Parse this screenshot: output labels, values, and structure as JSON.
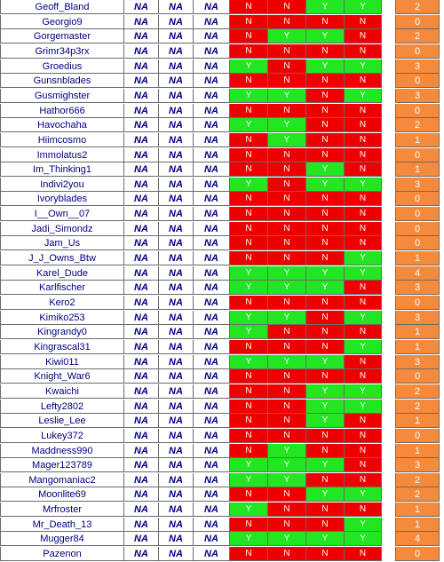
{
  "rows": [
    {
      "name": "Geoff_Bland",
      "na": [
        "NA",
        "NA",
        "NA"
      ],
      "yn": [
        "N",
        "N",
        "Y",
        "Y"
      ],
      "score": "2"
    },
    {
      "name": "Georgio9",
      "na": [
        "NA",
        "NA",
        "NA"
      ],
      "yn": [
        "N",
        "N",
        "N",
        "N"
      ],
      "score": "0"
    },
    {
      "name": "Gorgemaster",
      "na": [
        "NA",
        "NA",
        "NA"
      ],
      "yn": [
        "N",
        "Y",
        "Y",
        "N"
      ],
      "score": "2"
    },
    {
      "name": "Grimr34p3rx",
      "na": [
        "NA",
        "NA",
        "NA"
      ],
      "yn": [
        "N",
        "N",
        "N",
        "N"
      ],
      "score": "0"
    },
    {
      "name": "Groedius",
      "na": [
        "NA",
        "NA",
        "NA"
      ],
      "yn": [
        "Y",
        "N",
        "Y",
        "Y"
      ],
      "score": "3"
    },
    {
      "name": "Gunsnblades",
      "na": [
        "NA",
        "NA",
        "NA"
      ],
      "yn": [
        "N",
        "N",
        "N",
        "N"
      ],
      "score": "0"
    },
    {
      "name": "Gusmighster",
      "na": [
        "NA",
        "NA",
        "NA"
      ],
      "yn": [
        "Y",
        "Y",
        "N",
        "Y"
      ],
      "score": "3"
    },
    {
      "name": "Hathor666",
      "na": [
        "NA",
        "NA",
        "NA"
      ],
      "yn": [
        "N",
        "N",
        "N",
        "N"
      ],
      "score": "0"
    },
    {
      "name": "Havochaha",
      "na": [
        "NA",
        "NA",
        "NA"
      ],
      "yn": [
        "Y",
        "Y",
        "N",
        "N"
      ],
      "score": "2"
    },
    {
      "name": "Hiimcosmo",
      "na": [
        "NA",
        "NA",
        "NA"
      ],
      "yn": [
        "N",
        "Y",
        "N",
        "N"
      ],
      "score": "1"
    },
    {
      "name": "Immolatus2",
      "na": [
        "NA",
        "NA",
        "NA"
      ],
      "yn": [
        "N",
        "N",
        "N",
        "N"
      ],
      "score": "0"
    },
    {
      "name": "Im_Thinking1",
      "na": [
        "NA",
        "NA",
        "NA"
      ],
      "yn": [
        "N",
        "N",
        "Y",
        "N"
      ],
      "score": "1"
    },
    {
      "name": "Indivi2you",
      "na": [
        "NA",
        "NA",
        "NA"
      ],
      "yn": [
        "Y",
        "N",
        "Y",
        "Y"
      ],
      "score": "3"
    },
    {
      "name": "Ivoryblades",
      "na": [
        "NA",
        "NA",
        "NA"
      ],
      "yn": [
        "N",
        "N",
        "N",
        "N"
      ],
      "score": "0"
    },
    {
      "name": "I__Own__07",
      "na": [
        "NA",
        "NA",
        "NA"
      ],
      "yn": [
        "N",
        "N",
        "N",
        "N"
      ],
      "score": "0"
    },
    {
      "name": "Jadi_Simondz",
      "na": [
        "NA",
        "NA",
        "NA"
      ],
      "yn": [
        "N",
        "N",
        "N",
        "N"
      ],
      "score": "0"
    },
    {
      "name": "Jam_Us",
      "na": [
        "NA",
        "NA",
        "NA"
      ],
      "yn": [
        "N",
        "N",
        "N",
        "N"
      ],
      "score": "0"
    },
    {
      "name": "J_J_Owns_Btw",
      "na": [
        "NA",
        "NA",
        "NA"
      ],
      "yn": [
        "N",
        "N",
        "N",
        "Y"
      ],
      "score": "1"
    },
    {
      "name": "Karel_Dude",
      "na": [
        "NA",
        "NA",
        "NA"
      ],
      "yn": [
        "Y",
        "Y",
        "Y",
        "Y"
      ],
      "score": "4"
    },
    {
      "name": "Karlfischer",
      "na": [
        "NA",
        "NA",
        "NA"
      ],
      "yn": [
        "Y",
        "Y",
        "Y",
        "N"
      ],
      "score": "3"
    },
    {
      "name": "Kero2",
      "na": [
        "NA",
        "NA",
        "NA"
      ],
      "yn": [
        "N",
        "N",
        "N",
        "N"
      ],
      "score": "0"
    },
    {
      "name": "Kimiko253",
      "na": [
        "NA",
        "NA",
        "NA"
      ],
      "yn": [
        "Y",
        "Y",
        "N",
        "Y"
      ],
      "score": "3"
    },
    {
      "name": "Kingrandy0",
      "na": [
        "NA",
        "NA",
        "NA"
      ],
      "yn": [
        "Y",
        "N",
        "N",
        "N"
      ],
      "score": "1"
    },
    {
      "name": "Kingrascal31",
      "na": [
        "NA",
        "NA",
        "NA"
      ],
      "yn": [
        "N",
        "N",
        "N",
        "Y"
      ],
      "score": "1"
    },
    {
      "name": "Kiwi011",
      "na": [
        "NA",
        "NA",
        "NA"
      ],
      "yn": [
        "Y",
        "Y",
        "Y",
        "N"
      ],
      "score": "3"
    },
    {
      "name": "Knight_War6",
      "na": [
        "NA",
        "NA",
        "NA"
      ],
      "yn": [
        "N",
        "N",
        "N",
        "N"
      ],
      "score": "0"
    },
    {
      "name": "Kwaichi",
      "na": [
        "NA",
        "NA",
        "NA"
      ],
      "yn": [
        "N",
        "N",
        "Y",
        "Y"
      ],
      "score": "2"
    },
    {
      "name": "Lefty2802",
      "na": [
        "NA",
        "NA",
        "NA"
      ],
      "yn": [
        "N",
        "N",
        "Y",
        "Y"
      ],
      "score": "2"
    },
    {
      "name": "Leslie_Lee",
      "na": [
        "NA",
        "NA",
        "NA"
      ],
      "yn": [
        "N",
        "N",
        "Y",
        "N"
      ],
      "score": "1"
    },
    {
      "name": "Lukey372",
      "na": [
        "NA",
        "NA",
        "NA"
      ],
      "yn": [
        "N",
        "N",
        "N",
        "N"
      ],
      "score": "0"
    },
    {
      "name": "Maddness990",
      "na": [
        "NA",
        "NA",
        "NA"
      ],
      "yn": [
        "N",
        "Y",
        "N",
        "N"
      ],
      "score": "1"
    },
    {
      "name": "Mager123789",
      "na": [
        "NA",
        "NA",
        "NA"
      ],
      "yn": [
        "Y",
        "Y",
        "Y",
        "N"
      ],
      "score": "3"
    },
    {
      "name": "Mangomaniac2",
      "na": [
        "NA",
        "NA",
        "NA"
      ],
      "yn": [
        "Y",
        "Y",
        "N",
        "N"
      ],
      "score": "2"
    },
    {
      "name": "Moonlite69",
      "na": [
        "NA",
        "NA",
        "NA"
      ],
      "yn": [
        "N",
        "N",
        "Y",
        "Y"
      ],
      "score": "2"
    },
    {
      "name": "Mrfroster",
      "na": [
        "NA",
        "NA",
        "NA"
      ],
      "yn": [
        "Y",
        "N",
        "N",
        "N"
      ],
      "score": "1"
    },
    {
      "name": "Mr_Death_13",
      "na": [
        "NA",
        "NA",
        "NA"
      ],
      "yn": [
        "N",
        "N",
        "N",
        "Y"
      ],
      "score": "1"
    },
    {
      "name": "Mugger84",
      "na": [
        "NA",
        "NA",
        "NA"
      ],
      "yn": [
        "Y",
        "Y",
        "Y",
        "Y"
      ],
      "score": "4"
    },
    {
      "name": "Pazenon",
      "na": [
        "NA",
        "NA",
        "NA"
      ],
      "yn": [
        "N",
        "N",
        "N",
        "N"
      ],
      "score": "0"
    }
  ],
  "colors": {
    "yes": "#22e622",
    "no": "#ee0000",
    "score": "#f58a3c",
    "na_text": "#000080"
  }
}
